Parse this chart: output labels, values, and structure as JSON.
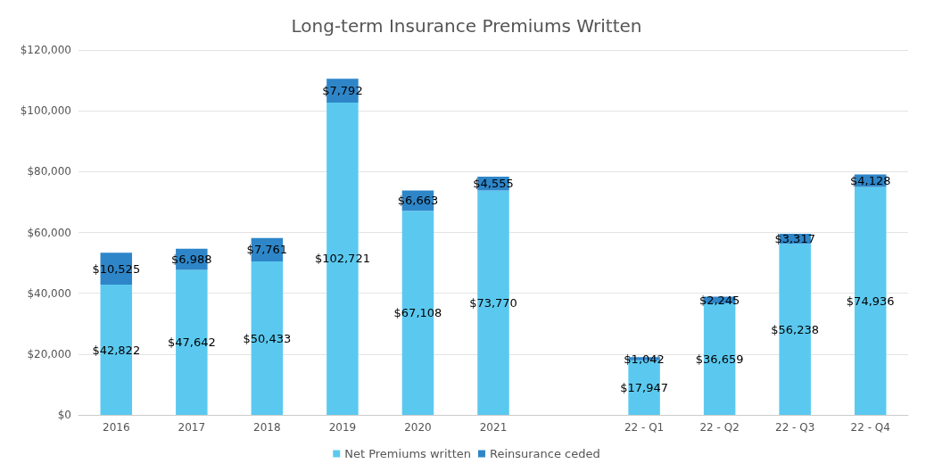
{
  "chart_data": {
    "type": "bar",
    "title": "Long-term Insurance Premiums Written",
    "stacked": true,
    "categories": [
      "2016",
      "2017",
      "2018",
      "2019",
      "2020",
      "2021",
      null,
      "22 - Q1",
      "22 - Q2",
      "22 - Q3",
      "22 - Q4"
    ],
    "series": [
      {
        "name": "Net Premiums written",
        "color": "#5bc9ef",
        "values": [
          42822,
          47642,
          50433,
          102721,
          67108,
          73770,
          null,
          17947,
          36659,
          56238,
          74936
        ],
        "value_labels": [
          "$42,822",
          "$47,642",
          "$50,433",
          "$102,721",
          "$67,108",
          "$73,770",
          null,
          "$17,947",
          "$36,659",
          "$56,238",
          "$74,936"
        ]
      },
      {
        "name": "Reinsurance ceded",
        "color": "#2e86c9",
        "values": [
          10525,
          6988,
          7761,
          7792,
          6663,
          4555,
          null,
          1042,
          2245,
          3317,
          4128
        ],
        "value_labels": [
          "$10,525",
          "$6,988",
          "$7,761",
          "$7,792",
          "$6,663",
          "$4,555",
          null,
          "$1,042",
          "$2,245",
          "$3,317",
          "$4,128"
        ]
      }
    ],
    "ylim": [
      0,
      120000
    ],
    "yticks": [
      {
        "value": 0,
        "label": "$0"
      },
      {
        "value": 20000,
        "label": "$20,000"
      },
      {
        "value": 40000,
        "label": "$40,000"
      },
      {
        "value": 60000,
        "label": "$60,000"
      },
      {
        "value": 80000,
        "label": "$80,000"
      },
      {
        "value": 100000,
        "label": "$100,000"
      },
      {
        "value": 120000,
        "label": "$120,000"
      }
    ],
    "grid": "y",
    "legend": "bottom"
  }
}
